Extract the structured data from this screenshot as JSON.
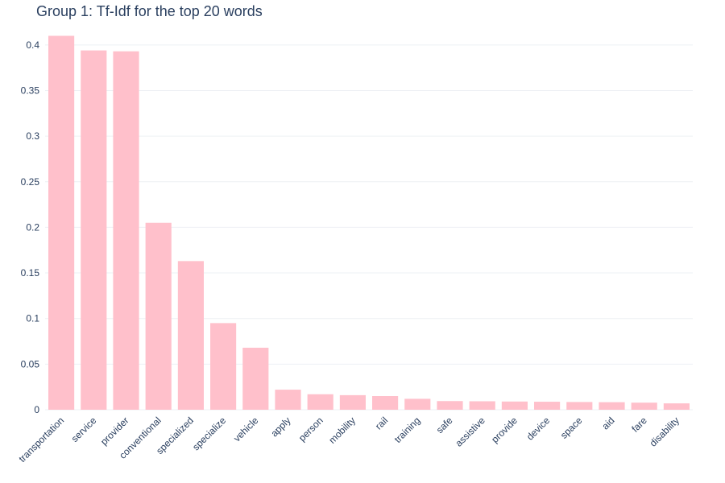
{
  "chart_data": {
    "type": "bar",
    "title": "Group 1: Tf-Idf for the top 20 words",
    "xlabel": "",
    "ylabel": "",
    "categories": [
      "transportation",
      "service",
      "provider",
      "conventional",
      "specialized",
      "specialize",
      "vehicle",
      "apply",
      "person",
      "mobility",
      "rail",
      "training",
      "safe",
      "assistive",
      "provide",
      "device",
      "space",
      "aid",
      "fare",
      "disability"
    ],
    "values": [
      0.41,
      0.394,
      0.393,
      0.205,
      0.163,
      0.095,
      0.068,
      0.022,
      0.017,
      0.016,
      0.015,
      0.012,
      0.0095,
      0.0093,
      0.009,
      0.0088,
      0.0085,
      0.0083,
      0.0078,
      0.007
    ],
    "ylim": [
      0,
      0.4175
    ],
    "yticks": [
      0,
      0.05,
      0.1,
      0.15,
      0.2,
      0.25,
      0.3,
      0.35,
      0.4
    ],
    "ytick_labels": [
      "0",
      "0.05",
      "0.1",
      "0.15",
      "0.2",
      "0.25",
      "0.3",
      "0.35",
      "0.4"
    ],
    "grid": true,
    "bar_color": "#ffc0cb",
    "text_color": "#2a3f5f"
  }
}
